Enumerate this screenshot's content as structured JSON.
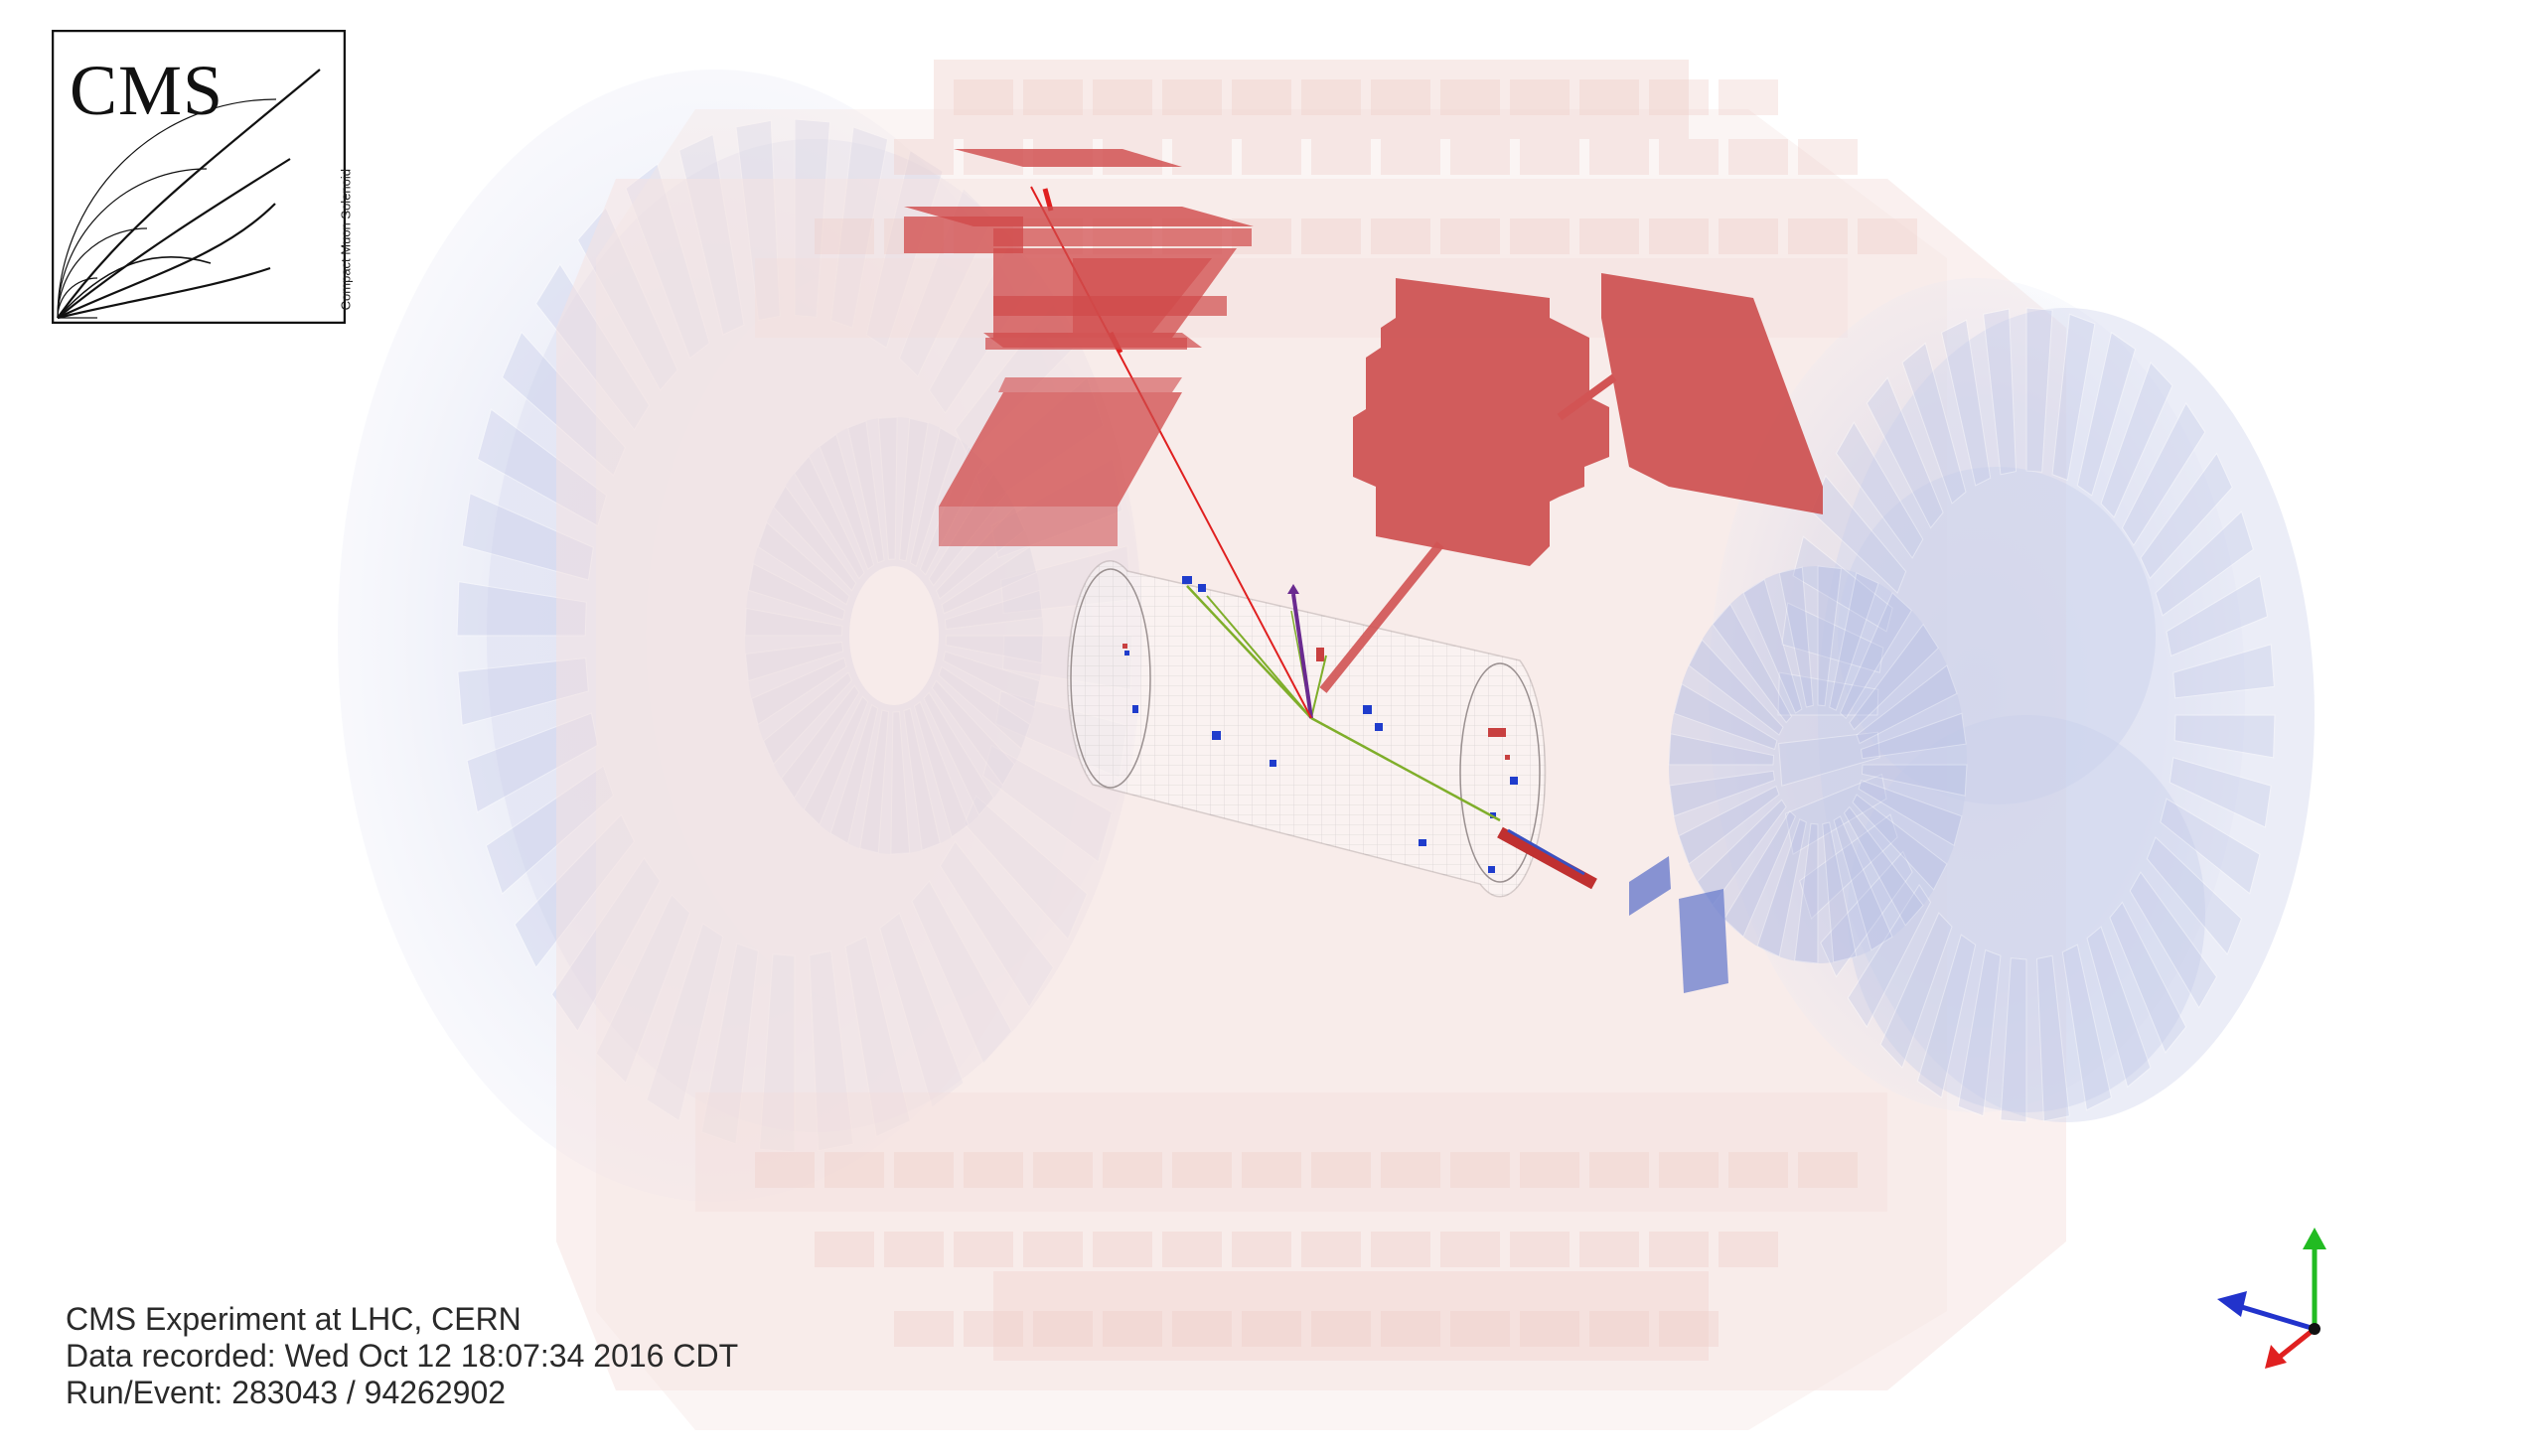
{
  "logo": {
    "title": "CMS",
    "subtitle": "Compact Muon Solenoid"
  },
  "event_info": {
    "line1": "CMS Experiment at LHC, CERN",
    "line2": "Data recorded: Wed Oct 12 18:07:34 2016 CDT",
    "line3": "Run/Event: 283043 / 94262902"
  },
  "colors": {
    "barrel_wheels": "#f3d9d6",
    "endcap_disks": "#c9cfe8",
    "calo_deposits": "#cc4c4c",
    "tracks": "#7fae2a",
    "muon_track": "#e02020",
    "axis_x": "#e02020",
    "axis_y": "#22bb22",
    "axis_z": "#2233cc"
  }
}
